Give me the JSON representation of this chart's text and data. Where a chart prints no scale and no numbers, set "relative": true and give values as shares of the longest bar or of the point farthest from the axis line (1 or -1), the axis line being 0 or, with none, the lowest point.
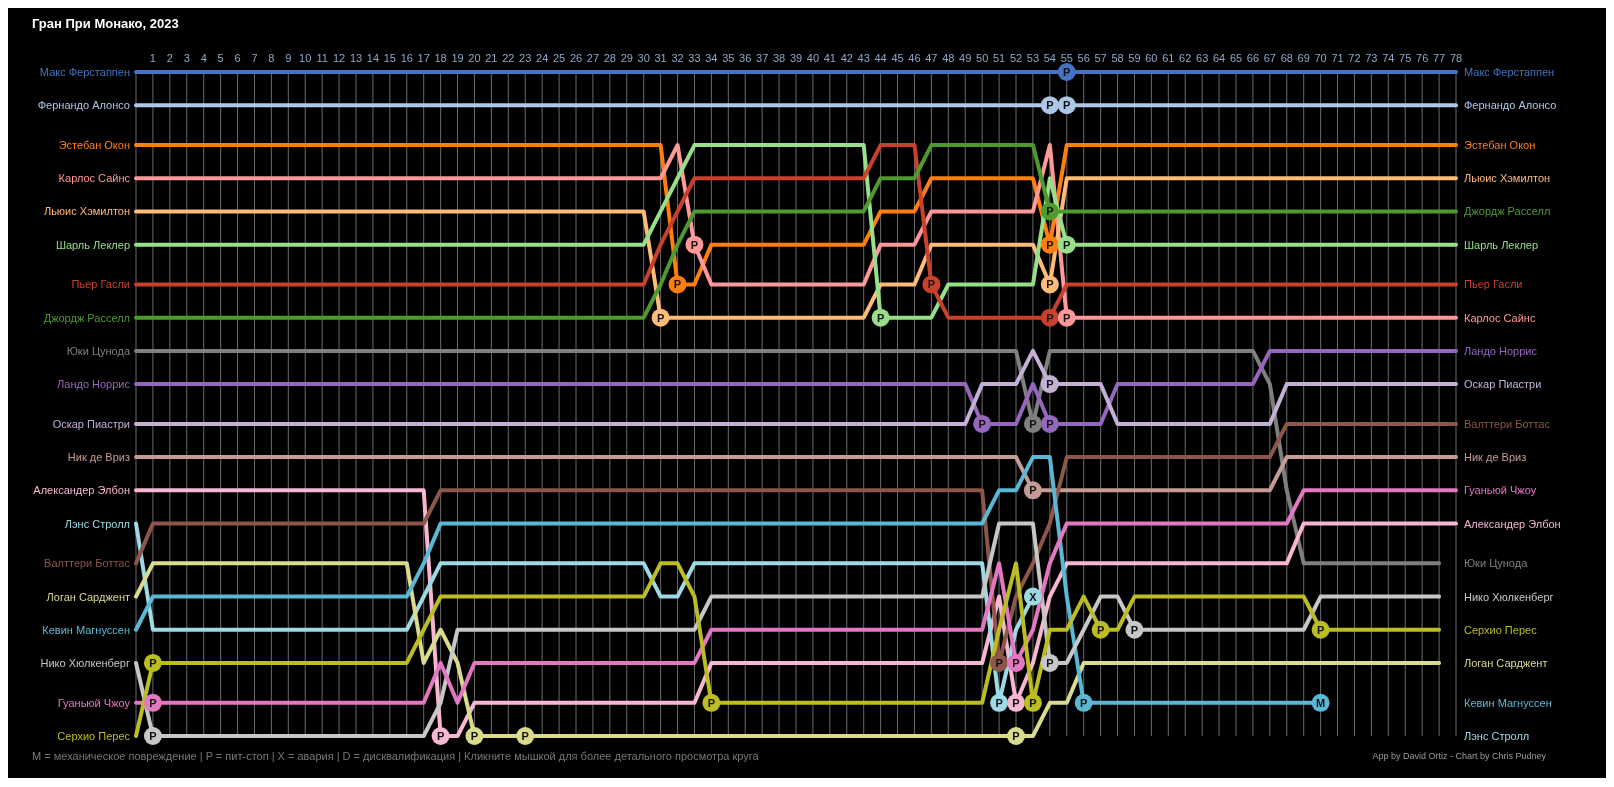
{
  "chart_data": {
    "type": "line",
    "title": "Гран При Монако, 2023",
    "relative": true,
    "x": [
      0,
      1,
      2,
      3,
      4,
      5,
      6,
      7,
      8,
      9,
      10,
      11,
      12,
      13,
      14,
      15,
      16,
      17,
      18,
      19,
      20,
      21,
      22,
      23,
      24,
      25,
      26,
      27,
      28,
      29,
      30,
      31,
      32,
      33,
      34,
      35,
      36,
      37,
      38,
      39,
      40,
      41,
      42,
      43,
      44,
      45,
      46,
      47,
      48,
      49,
      50,
      51,
      52,
      53,
      54,
      55,
      56,
      57,
      58,
      59,
      60,
      61,
      62,
      63,
      64,
      65,
      66,
      67,
      68,
      69,
      70,
      71,
      72,
      73,
      74,
      75,
      76,
      77,
      78
    ],
    "xlim": [
      0,
      78
    ],
    "xticks": [
      {
        "value": 0,
        "label": null
      },
      1,
      2,
      3,
      4,
      5,
      6,
      7,
      8,
      9,
      10,
      11,
      12,
      13,
      14,
      15,
      16,
      17,
      18,
      19,
      20,
      21,
      22,
      23,
      24,
      25,
      26,
      27,
      28,
      29,
      30,
      31,
      32,
      33,
      34,
      35,
      36,
      37,
      38,
      39,
      40,
      41,
      42,
      43,
      44,
      45,
      46,
      47,
      48,
      49,
      50,
      51,
      52,
      53,
      54,
      55,
      56,
      57,
      58,
      59,
      60,
      61,
      62,
      63,
      64,
      65,
      66,
      67,
      68,
      69,
      70,
      71,
      72,
      73,
      74,
      75,
      76,
      77,
      78
    ],
    "grid": "x",
    "series": [
      {
        "name": "Макс Ферстаппен",
        "color": "#4472c4",
        "values": [
          1,
          1,
          1,
          1,
          1,
          1,
          1,
          1,
          1,
          1,
          1,
          1,
          1,
          1,
          1,
          1,
          1,
          1,
          1,
          1,
          1,
          1,
          1,
          1,
          1,
          1,
          1,
          1,
          1,
          1,
          1,
          1,
          1,
          1,
          1,
          1,
          1,
          1,
          1,
          1,
          1,
          1,
          1,
          1,
          1,
          1,
          1,
          1,
          1,
          1,
          1,
          1,
          1,
          1,
          1,
          1,
          1,
          1,
          1,
          1,
          1,
          1,
          1,
          1,
          1,
          1,
          1,
          1,
          1,
          1,
          1,
          1,
          1,
          1,
          1,
          1,
          1,
          1,
          1
        ]
      },
      {
        "name": "Фернандо Алонсо",
        "color": "#aec7e8",
        "values": [
          0.95,
          0.95,
          0.95,
          0.95,
          0.95,
          0.95,
          0.95,
          0.95,
          0.95,
          0.95,
          0.95,
          0.95,
          0.95,
          0.95,
          0.95,
          0.95,
          0.95,
          0.95,
          0.95,
          0.95,
          0.95,
          0.95,
          0.95,
          0.95,
          0.95,
          0.95,
          0.95,
          0.95,
          0.95,
          0.95,
          0.95,
          0.95,
          0.95,
          0.95,
          0.95,
          0.95,
          0.95,
          0.95,
          0.95,
          0.95,
          0.95,
          0.95,
          0.95,
          0.95,
          0.95,
          0.95,
          0.95,
          0.95,
          0.95,
          0.95,
          0.95,
          0.95,
          0.95,
          0.95,
          0.95,
          0.95,
          0.95,
          0.95,
          0.95,
          0.95,
          0.95,
          0.95,
          0.95,
          0.95,
          0.95,
          0.95,
          0.95,
          0.95,
          0.95,
          0.95,
          0.95,
          0.95,
          0.95,
          0.95,
          0.95,
          0.95,
          0.95,
          0.95,
          0.95
        ]
      },
      {
        "name": "Эстебан Окон",
        "color": "#ff7f0e",
        "values": [
          0.89,
          0.89,
          0.89,
          0.89,
          0.89,
          0.89,
          0.89,
          0.89,
          0.89,
          0.89,
          0.89,
          0.89,
          0.89,
          0.89,
          0.89,
          0.89,
          0.89,
          0.89,
          0.89,
          0.89,
          0.89,
          0.89,
          0.89,
          0.89,
          0.89,
          0.89,
          0.89,
          0.89,
          0.89,
          0.89,
          0.89,
          0.89,
          0.68,
          0.68,
          0.74,
          0.74,
          0.74,
          0.74,
          0.74,
          0.74,
          0.74,
          0.74,
          0.74,
          0.74,
          0.79,
          0.79,
          0.79,
          0.84,
          0.84,
          0.84,
          0.84,
          0.84,
          0.84,
          0.84,
          0.74,
          0.89,
          0.89,
          0.89,
          0.89,
          0.89,
          0.89,
          0.89,
          0.89,
          0.89,
          0.89,
          0.89,
          0.89,
          0.89,
          0.89,
          0.89,
          0.89,
          0.89,
          0.89,
          0.89,
          0.89,
          0.89,
          0.89,
          0.89,
          0.89
        ]
      },
      {
        "name": "Карлос Сайнс",
        "color": "#ff9896",
        "values": [
          0.84,
          0.84,
          0.84,
          0.84,
          0.84,
          0.84,
          0.84,
          0.84,
          0.84,
          0.84,
          0.84,
          0.84,
          0.84,
          0.84,
          0.84,
          0.84,
          0.84,
          0.84,
          0.84,
          0.84,
          0.84,
          0.84,
          0.84,
          0.84,
          0.84,
          0.84,
          0.84,
          0.84,
          0.84,
          0.84,
          0.84,
          0.84,
          0.89,
          0.74,
          0.68,
          0.68,
          0.68,
          0.68,
          0.68,
          0.68,
          0.68,
          0.68,
          0.68,
          0.68,
          0.74,
          0.74,
          0.74,
          0.79,
          0.79,
          0.79,
          0.79,
          0.79,
          0.79,
          0.79,
          0.89,
          0.63,
          0.63,
          0.63,
          0.63,
          0.63,
          0.63,
          0.63,
          0.63,
          0.63,
          0.63,
          0.63,
          0.63,
          0.63,
          0.63,
          0.63,
          0.63,
          0.63,
          0.63,
          0.63,
          0.63,
          0.63,
          0.63,
          0.63,
          0.63
        ]
      },
      {
        "name": "Льюис Хэмилтон",
        "color": "#ffbb78",
        "values": [
          0.79,
          0.79,
          0.79,
          0.79,
          0.79,
          0.79,
          0.79,
          0.79,
          0.79,
          0.79,
          0.79,
          0.79,
          0.79,
          0.79,
          0.79,
          0.79,
          0.79,
          0.79,
          0.79,
          0.79,
          0.79,
          0.79,
          0.79,
          0.79,
          0.79,
          0.79,
          0.79,
          0.79,
          0.79,
          0.79,
          0.79,
          0.63,
          0.63,
          0.63,
          0.63,
          0.63,
          0.63,
          0.63,
          0.63,
          0.63,
          0.63,
          0.63,
          0.63,
          0.63,
          0.68,
          0.68,
          0.68,
          0.74,
          0.74,
          0.74,
          0.74,
          0.74,
          0.74,
          0.74,
          0.68,
          0.84,
          0.84,
          0.84,
          0.84,
          0.84,
          0.84,
          0.84,
          0.84,
          0.84,
          0.84,
          0.84,
          0.84,
          0.84,
          0.84,
          0.84,
          0.84,
          0.84,
          0.84,
          0.84,
          0.84,
          0.84,
          0.84,
          0.84,
          0.84
        ]
      },
      {
        "name": "Шарль Леклер",
        "color": "#98df8a",
        "values": [
          0.74,
          0.74,
          0.74,
          0.74,
          0.74,
          0.74,
          0.74,
          0.74,
          0.74,
          0.74,
          0.74,
          0.74,
          0.74,
          0.74,
          0.74,
          0.74,
          0.74,
          0.74,
          0.74,
          0.74,
          0.74,
          0.74,
          0.74,
          0.74,
          0.74,
          0.74,
          0.74,
          0.74,
          0.74,
          0.74,
          0.74,
          0.79,
          0.84,
          0.89,
          0.89,
          0.89,
          0.89,
          0.89,
          0.89,
          0.89,
          0.89,
          0.89,
          0.89,
          0.89,
          0.63,
          0.63,
          0.63,
          0.63,
          0.68,
          0.68,
          0.68,
          0.68,
          0.68,
          0.68,
          0.84,
          0.74,
          0.74,
          0.74,
          0.74,
          0.74,
          0.74,
          0.74,
          0.74,
          0.74,
          0.74,
          0.74,
          0.74,
          0.74,
          0.74,
          0.74,
          0.74,
          0.74,
          0.74,
          0.74,
          0.74,
          0.74,
          0.74,
          0.74,
          0.74
        ]
      },
      {
        "name": "Пьер Гасли",
        "color": "#c9402c",
        "values": [
          0.68,
          0.68,
          0.68,
          0.68,
          0.68,
          0.68,
          0.68,
          0.68,
          0.68,
          0.68,
          0.68,
          0.68,
          0.68,
          0.68,
          0.68,
          0.68,
          0.68,
          0.68,
          0.68,
          0.68,
          0.68,
          0.68,
          0.68,
          0.68,
          0.68,
          0.68,
          0.68,
          0.68,
          0.68,
          0.68,
          0.68,
          0.74,
          0.79,
          0.84,
          0.84,
          0.84,
          0.84,
          0.84,
          0.84,
          0.84,
          0.84,
          0.84,
          0.84,
          0.84,
          0.89,
          0.89,
          0.89,
          0.68,
          0.63,
          0.63,
          0.63,
          0.63,
          0.63,
          0.63,
          0.63,
          0.68,
          0.68,
          0.68,
          0.68,
          0.68,
          0.68,
          0.68,
          0.68,
          0.68,
          0.68,
          0.68,
          0.68,
          0.68,
          0.68,
          0.68,
          0.68,
          0.68,
          0.68,
          0.68,
          0.68,
          0.68,
          0.68,
          0.68,
          0.68
        ]
      },
      {
        "name": "Джордж Расселл",
        "color": "#4e9a2f",
        "values": [
          0.63,
          0.63,
          0.63,
          0.63,
          0.63,
          0.63,
          0.63,
          0.63,
          0.63,
          0.63,
          0.63,
          0.63,
          0.63,
          0.63,
          0.63,
          0.63,
          0.63,
          0.63,
          0.63,
          0.63,
          0.63,
          0.63,
          0.63,
          0.63,
          0.63,
          0.63,
          0.63,
          0.63,
          0.63,
          0.63,
          0.63,
          0.68,
          0.74,
          0.79,
          0.79,
          0.79,
          0.79,
          0.79,
          0.79,
          0.79,
          0.79,
          0.79,
          0.79,
          0.79,
          0.84,
          0.84,
          0.84,
          0.89,
          0.89,
          0.89,
          0.89,
          0.89,
          0.89,
          0.89,
          0.79,
          0.79,
          0.79,
          0.79,
          0.79,
          0.79,
          0.79,
          0.79,
          0.79,
          0.79,
          0.79,
          0.79,
          0.79,
          0.79,
          0.79,
          0.79,
          0.79,
          0.79,
          0.79,
          0.79,
          0.79,
          0.79,
          0.79,
          0.79,
          0.79
        ]
      },
      {
        "name": "Юки Цунода",
        "color": "#7f7f7f",
        "values": [
          0.58,
          0.58,
          0.58,
          0.58,
          0.58,
          0.58,
          0.58,
          0.58,
          0.58,
          0.58,
          0.58,
          0.58,
          0.58,
          0.58,
          0.58,
          0.58,
          0.58,
          0.58,
          0.58,
          0.58,
          0.58,
          0.58,
          0.58,
          0.58,
          0.58,
          0.58,
          0.58,
          0.58,
          0.58,
          0.58,
          0.58,
          0.58,
          0.58,
          0.58,
          0.58,
          0.58,
          0.58,
          0.58,
          0.58,
          0.58,
          0.58,
          0.58,
          0.58,
          0.58,
          0.58,
          0.58,
          0.58,
          0.58,
          0.58,
          0.58,
          0.58,
          0.58,
          0.58,
          0.47,
          0.58,
          0.58,
          0.58,
          0.58,
          0.58,
          0.58,
          0.58,
          0.58,
          0.58,
          0.58,
          0.58,
          0.58,
          0.58,
          0.53,
          0.37,
          0.26,
          0.26,
          0.26,
          0.26,
          0.26,
          0.26,
          0.26,
          0.26,
          0.26,
          null
        ]
      },
      {
        "name": "Ландо Норрис",
        "color": "#9467bd",
        "values": [
          0.53,
          0.53,
          0.53,
          0.53,
          0.53,
          0.53,
          0.53,
          0.53,
          0.53,
          0.53,
          0.53,
          0.53,
          0.53,
          0.53,
          0.53,
          0.53,
          0.53,
          0.53,
          0.53,
          0.53,
          0.53,
          0.53,
          0.53,
          0.53,
          0.53,
          0.53,
          0.53,
          0.53,
          0.53,
          0.53,
          0.53,
          0.53,
          0.53,
          0.53,
          0.53,
          0.53,
          0.53,
          0.53,
          0.53,
          0.53,
          0.53,
          0.53,
          0.53,
          0.53,
          0.53,
          0.53,
          0.53,
          0.53,
          0.53,
          0.53,
          0.47,
          0.47,
          0.47,
          0.53,
          0.47,
          0.47,
          0.47,
          0.47,
          0.53,
          0.53,
          0.53,
          0.53,
          0.53,
          0.53,
          0.53,
          0.53,
          0.53,
          0.58,
          0.58,
          0.58,
          0.58,
          0.58,
          0.58,
          0.58,
          0.58,
          0.58,
          0.58,
          0.58,
          0.58
        ]
      },
      {
        "name": "Оскар Пиастри",
        "color": "#c5b0d5",
        "values": [
          0.47,
          0.47,
          0.47,
          0.47,
          0.47,
          0.47,
          0.47,
          0.47,
          0.47,
          0.47,
          0.47,
          0.47,
          0.47,
          0.47,
          0.47,
          0.47,
          0.47,
          0.47,
          0.47,
          0.47,
          0.47,
          0.47,
          0.47,
          0.47,
          0.47,
          0.47,
          0.47,
          0.47,
          0.47,
          0.47,
          0.47,
          0.47,
          0.47,
          0.47,
          0.47,
          0.47,
          0.47,
          0.47,
          0.47,
          0.47,
          0.47,
          0.47,
          0.47,
          0.47,
          0.47,
          0.47,
          0.47,
          0.47,
          0.47,
          0.47,
          0.53,
          0.53,
          0.53,
          0.58,
          0.53,
          0.53,
          0.53,
          0.53,
          0.47,
          0.47,
          0.47,
          0.47,
          0.47,
          0.47,
          0.47,
          0.47,
          0.47,
          0.47,
          0.53,
          0.53,
          0.53,
          0.53,
          0.53,
          0.53,
          0.53,
          0.53,
          0.53,
          0.53,
          0.53
        ]
      },
      {
        "name": "Ник де Вриз",
        "color": "#c49c94",
        "values": [
          0.42,
          0.42,
          0.42,
          0.42,
          0.42,
          0.42,
          0.42,
          0.42,
          0.42,
          0.42,
          0.42,
          0.42,
          0.42,
          0.42,
          0.42,
          0.42,
          0.42,
          0.42,
          0.42,
          0.42,
          0.42,
          0.42,
          0.42,
          0.42,
          0.42,
          0.42,
          0.42,
          0.42,
          0.42,
          0.42,
          0.42,
          0.42,
          0.42,
          0.42,
          0.42,
          0.42,
          0.42,
          0.42,
          0.42,
          0.42,
          0.42,
          0.42,
          0.42,
          0.42,
          0.42,
          0.42,
          0.42,
          0.42,
          0.42,
          0.42,
          0.42,
          0.42,
          0.42,
          0.37,
          0.37,
          0.37,
          0.37,
          0.37,
          0.37,
          0.37,
          0.37,
          0.37,
          0.37,
          0.37,
          0.37,
          0.37,
          0.37,
          0.37,
          0.42,
          0.42,
          0.42,
          0.42,
          0.42,
          0.42,
          0.42,
          0.42,
          0.42,
          0.42,
          0.42
        ]
      },
      {
        "name": "Александер Элбон",
        "color": "#f7b6d2",
        "values": [
          0.37,
          0.37,
          0.37,
          0.37,
          0.37,
          0.37,
          0.37,
          0.37,
          0.37,
          0.37,
          0.37,
          0.37,
          0.37,
          0.37,
          0.37,
          0.37,
          0.37,
          0.37,
          0,
          0,
          0.05,
          0.05,
          0.05,
          0.05,
          0.05,
          0.05,
          0.05,
          0.05,
          0.05,
          0.05,
          0.05,
          0.05,
          0.05,
          0.05,
          0.11,
          0.11,
          0.11,
          0.11,
          0.11,
          0.11,
          0.11,
          0.11,
          0.11,
          0.11,
          0.11,
          0.11,
          0.11,
          0.11,
          0.11,
          0.11,
          0.11,
          0.21,
          0.05,
          0.11,
          0.21,
          0.26,
          0.26,
          0.26,
          0.26,
          0.26,
          0.26,
          0.26,
          0.26,
          0.26,
          0.26,
          0.26,
          0.26,
          0.26,
          0.26,
          0.32,
          0.32,
          0.32,
          0.32,
          0.32,
          0.32,
          0.32,
          0.32,
          0.32,
          0.32
        ]
      },
      {
        "name": "Лэнс Стролл",
        "color": "#9edae5",
        "values": [
          0.32,
          0.16,
          0.16,
          0.16,
          0.16,
          0.16,
          0.16,
          0.16,
          0.16,
          0.16,
          0.16,
          0.16,
          0.16,
          0.16,
          0.16,
          0.16,
          0.16,
          0.21,
          0.26,
          0.26,
          0.26,
          0.26,
          0.26,
          0.26,
          0.26,
          0.26,
          0.26,
          0.26,
          0.26,
          0.26,
          0.26,
          0.21,
          0.21,
          0.26,
          0.26,
          0.26,
          0.26,
          0.26,
          0.26,
          0.26,
          0.26,
          0.26,
          0.26,
          0.26,
          0.26,
          0.26,
          0.26,
          0.26,
          0.26,
          0.26,
          0.26,
          0.05,
          0.16,
          0.21,
          null,
          null,
          null,
          null,
          null,
          null,
          null,
          null,
          null,
          null,
          null,
          null,
          null,
          null,
          null,
          null,
          null,
          null,
          null,
          null,
          null,
          null,
          null,
          null,
          null
        ]
      },
      {
        "name": "Валттери Боттас",
        "color": "#8c564b",
        "values": [
          0.26,
          0.32,
          0.32,
          0.32,
          0.32,
          0.32,
          0.32,
          0.32,
          0.32,
          0.32,
          0.32,
          0.32,
          0.32,
          0.32,
          0.32,
          0.32,
          0.32,
          0.32,
          0.37,
          0.37,
          0.37,
          0.37,
          0.37,
          0.37,
          0.37,
          0.37,
          0.37,
          0.37,
          0.37,
          0.37,
          0.37,
          0.37,
          0.37,
          0.37,
          0.37,
          0.37,
          0.37,
          0.37,
          0.37,
          0.37,
          0.37,
          0.37,
          0.37,
          0.37,
          0.37,
          0.37,
          0.37,
          0.37,
          0.37,
          0.37,
          0.37,
          0.11,
          0.21,
          0.26,
          0.32,
          0.42,
          0.42,
          0.42,
          0.42,
          0.42,
          0.42,
          0.42,
          0.42,
          0.42,
          0.42,
          0.42,
          0.42,
          0.42,
          0.47,
          0.47,
          0.47,
          0.47,
          0.47,
          0.47,
          0.47,
          0.47,
          0.47,
          0.47,
          0.47
        ]
      },
      {
        "name": "Логан Сарджент",
        "color": "#dbdb8d",
        "values": [
          0.21,
          0.26,
          0.26,
          0.26,
          0.26,
          0.26,
          0.26,
          0.26,
          0.26,
          0.26,
          0.26,
          0.26,
          0.26,
          0.26,
          0.26,
          0.26,
          0.26,
          0.11,
          0.16,
          0.11,
          0,
          0,
          0,
          0,
          0,
          0,
          0,
          0,
          0,
          0,
          0,
          0,
          0,
          0,
          0,
          0,
          0,
          0,
          0,
          0,
          0,
          0,
          0,
          0,
          0,
          0,
          0,
          0,
          0,
          0,
          0,
          0,
          0,
          0,
          0.05,
          0.05,
          0.11,
          0.11,
          0.11,
          0.11,
          0.11,
          0.11,
          0.11,
          0.11,
          0.11,
          0.11,
          0.11,
          0.11,
          0.11,
          0.11,
          0.11,
          0.11,
          0.11,
          0.11,
          0.11,
          0.11,
          0.11,
          0.11,
          null
        ]
      },
      {
        "name": "Кевин Магнуссен",
        "color": "#5bb8d4",
        "values": [
          0.16,
          0.21,
          0.21,
          0.21,
          0.21,
          0.21,
          0.21,
          0.21,
          0.21,
          0.21,
          0.21,
          0.21,
          0.21,
          0.21,
          0.21,
          0.21,
          0.21,
          0.26,
          0.32,
          0.32,
          0.32,
          0.32,
          0.32,
          0.32,
          0.32,
          0.32,
          0.32,
          0.32,
          0.32,
          0.32,
          0.32,
          0.32,
          0.32,
          0.32,
          0.32,
          0.32,
          0.32,
          0.32,
          0.32,
          0.32,
          0.32,
          0.32,
          0.32,
          0.32,
          0.32,
          0.32,
          0.32,
          0.32,
          0.32,
          0.32,
          0.32,
          0.37,
          0.37,
          0.42,
          0.42,
          0.21,
          0.05,
          0.05,
          0.05,
          0.05,
          0.05,
          0.05,
          0.05,
          0.05,
          0.05,
          0.05,
          0.05,
          0.05,
          0.05,
          0.05,
          0.05,
          null,
          null,
          null,
          null,
          null,
          null,
          null,
          null
        ]
      },
      {
        "name": "Нико Хюлкенберг",
        "color": "#c7c7c7",
        "values": [
          0.11,
          0,
          0,
          0,
          0,
          0,
          0,
          0,
          0,
          0,
          0,
          0,
          0,
          0,
          0,
          0,
          0,
          0,
          0.05,
          0.16,
          0.16,
          0.16,
          0.16,
          0.16,
          0.16,
          0.16,
          0.16,
          0.16,
          0.16,
          0.16,
          0.16,
          0.16,
          0.16,
          0.16,
          0.21,
          0.21,
          0.21,
          0.21,
          0.21,
          0.21,
          0.21,
          0.21,
          0.21,
          0.21,
          0.21,
          0.21,
          0.21,
          0.21,
          0.21,
          0.21,
          0.21,
          0.32,
          0.32,
          0.32,
          0.11,
          0.11,
          0.16,
          0.21,
          0.21,
          0.16,
          0.16,
          0.16,
          0.16,
          0.16,
          0.16,
          0.16,
          0.16,
          0.16,
          0.16,
          0.16,
          0.21,
          0.21,
          0.21,
          0.21,
          0.21,
          0.21,
          0.21,
          0.21,
          null
        ]
      },
      {
        "name": "Гуаньюй Чжоу",
        "color": "#e377c2",
        "values": [
          0.05,
          0.05,
          0.05,
          0.05,
          0.05,
          0.05,
          0.05,
          0.05,
          0.05,
          0.05,
          0.05,
          0.05,
          0.05,
          0.05,
          0.05,
          0.05,
          0.05,
          0.05,
          0.11,
          0.05,
          0.11,
          0.11,
          0.11,
          0.11,
          0.11,
          0.11,
          0.11,
          0.11,
          0.11,
          0.11,
          0.11,
          0.11,
          0.11,
          0.11,
          0.16,
          0.16,
          0.16,
          0.16,
          0.16,
          0.16,
          0.16,
          0.16,
          0.16,
          0.16,
          0.16,
          0.16,
          0.16,
          0.16,
          0.16,
          0.16,
          0.16,
          0.26,
          0.11,
          0.16,
          0.26,
          0.32,
          0.32,
          0.32,
          0.32,
          0.32,
          0.32,
          0.32,
          0.32,
          0.32,
          0.32,
          0.32,
          0.32,
          0.32,
          0.32,
          0.37,
          0.37,
          0.37,
          0.37,
          0.37,
          0.37,
          0.37,
          0.37,
          0.37,
          0.37
        ]
      },
      {
        "name": "Серхио Перес",
        "color": "#bcbd22",
        "values": [
          0,
          0.11,
          0.11,
          0.11,
          0.11,
          0.11,
          0.11,
          0.11,
          0.11,
          0.11,
          0.11,
          0.11,
          0.11,
          0.11,
          0.11,
          0.11,
          0.11,
          0.16,
          0.21,
          0.21,
          0.21,
          0.21,
          0.21,
          0.21,
          0.21,
          0.21,
          0.21,
          0.21,
          0.21,
          0.21,
          0.21,
          0.26,
          0.26,
          0.21,
          0.05,
          0.05,
          0.05,
          0.05,
          0.05,
          0.05,
          0.05,
          0.05,
          0.05,
          0.05,
          0.05,
          0.05,
          0.05,
          0.05,
          0.05,
          0.05,
          0.05,
          0.16,
          0.26,
          0.05,
          0.16,
          0.16,
          0.21,
          0.16,
          0.16,
          0.21,
          0.21,
          0.21,
          0.21,
          0.21,
          0.21,
          0.21,
          0.21,
          0.21,
          0.21,
          0.21,
          0.16,
          0.16,
          0.16,
          0.16,
          0.16,
          0.16,
          0.16,
          0.16,
          null
        ]
      }
    ],
    "annotations": [
      {
        "text": "P",
        "x": 1,
        "y": 0.11
      },
      {
        "text": "P",
        "x": 1,
        "y": 0.05
      },
      {
        "text": "P",
        "x": 1,
        "y": 0
      },
      {
        "text": "P",
        "x": 18,
        "y": 0
      },
      {
        "text": "P",
        "x": 20,
        "y": 0
      },
      {
        "text": "P",
        "x": 23,
        "y": 0
      },
      {
        "text": "P",
        "x": 31,
        "y": 0.63
      },
      {
        "text": "P",
        "x": 32,
        "y": 0.68
      },
      {
        "text": "P",
        "x": 33,
        "y": 0.74
      },
      {
        "text": "P",
        "x": 34,
        "y": 0.05
      },
      {
        "text": "P",
        "x": 44,
        "y": 0.63
      },
      {
        "text": "P",
        "x": 47,
        "y": 0.68
      },
      {
        "text": "P",
        "x": 50,
        "y": 0.47
      },
      {
        "text": "P",
        "x": 51,
        "y": 0.11
      },
      {
        "text": "P",
        "x": 51,
        "y": 0.05
      },
      {
        "text": "P",
        "x": 52,
        "y": 0.11
      },
      {
        "text": "P",
        "x": 52,
        "y": 0.05
      },
      {
        "text": "P",
        "x": 52,
        "y": 0
      },
      {
        "text": "P",
        "x": 53,
        "y": 0.47
      },
      {
        "text": "P",
        "x": 53,
        "y": 0.37
      },
      {
        "text": "X",
        "x": 53,
        "y": 0.21
      },
      {
        "text": "P",
        "x": 53,
        "y": 0.05
      },
      {
        "text": "P",
        "x": 54,
        "y": 0.95
      },
      {
        "text": "P",
        "x": 54,
        "y": 0.79
      },
      {
        "text": "P",
        "x": 54,
        "y": 0.74
      },
      {
        "text": "P",
        "x": 54,
        "y": 0.68
      },
      {
        "text": "P",
        "x": 54,
        "y": 0.63
      },
      {
        "text": "P",
        "x": 54,
        "y": 0.53
      },
      {
        "text": "P",
        "x": 54,
        "y": 0.47
      },
      {
        "text": "P",
        "x": 54,
        "y": 0.11
      },
      {
        "text": "P",
        "x": 55,
        "y": 1
      },
      {
        "text": "P",
        "x": 55,
        "y": 0.95
      },
      {
        "text": "P",
        "x": 55,
        "y": 0.74
      },
      {
        "text": "P",
        "x": 55,
        "y": 0.63
      },
      {
        "text": "P",
        "x": 56,
        "y": 0.05
      },
      {
        "text": "P",
        "x": 57,
        "y": 0.16
      },
      {
        "text": "P",
        "x": 59,
        "y": 0.16
      },
      {
        "text": "P",
        "x": 70,
        "y": 0.16
      },
      {
        "text": "M",
        "x": 70,
        "y": 0.05
      },
      "M = механическое повреждение | P = пит-стоп | X = авария | D = дисквалификация | Кликните мышкой для более детального просмотра круга",
      "App by David Ortiz - Chart by Chris Pudney"
    ]
  }
}
